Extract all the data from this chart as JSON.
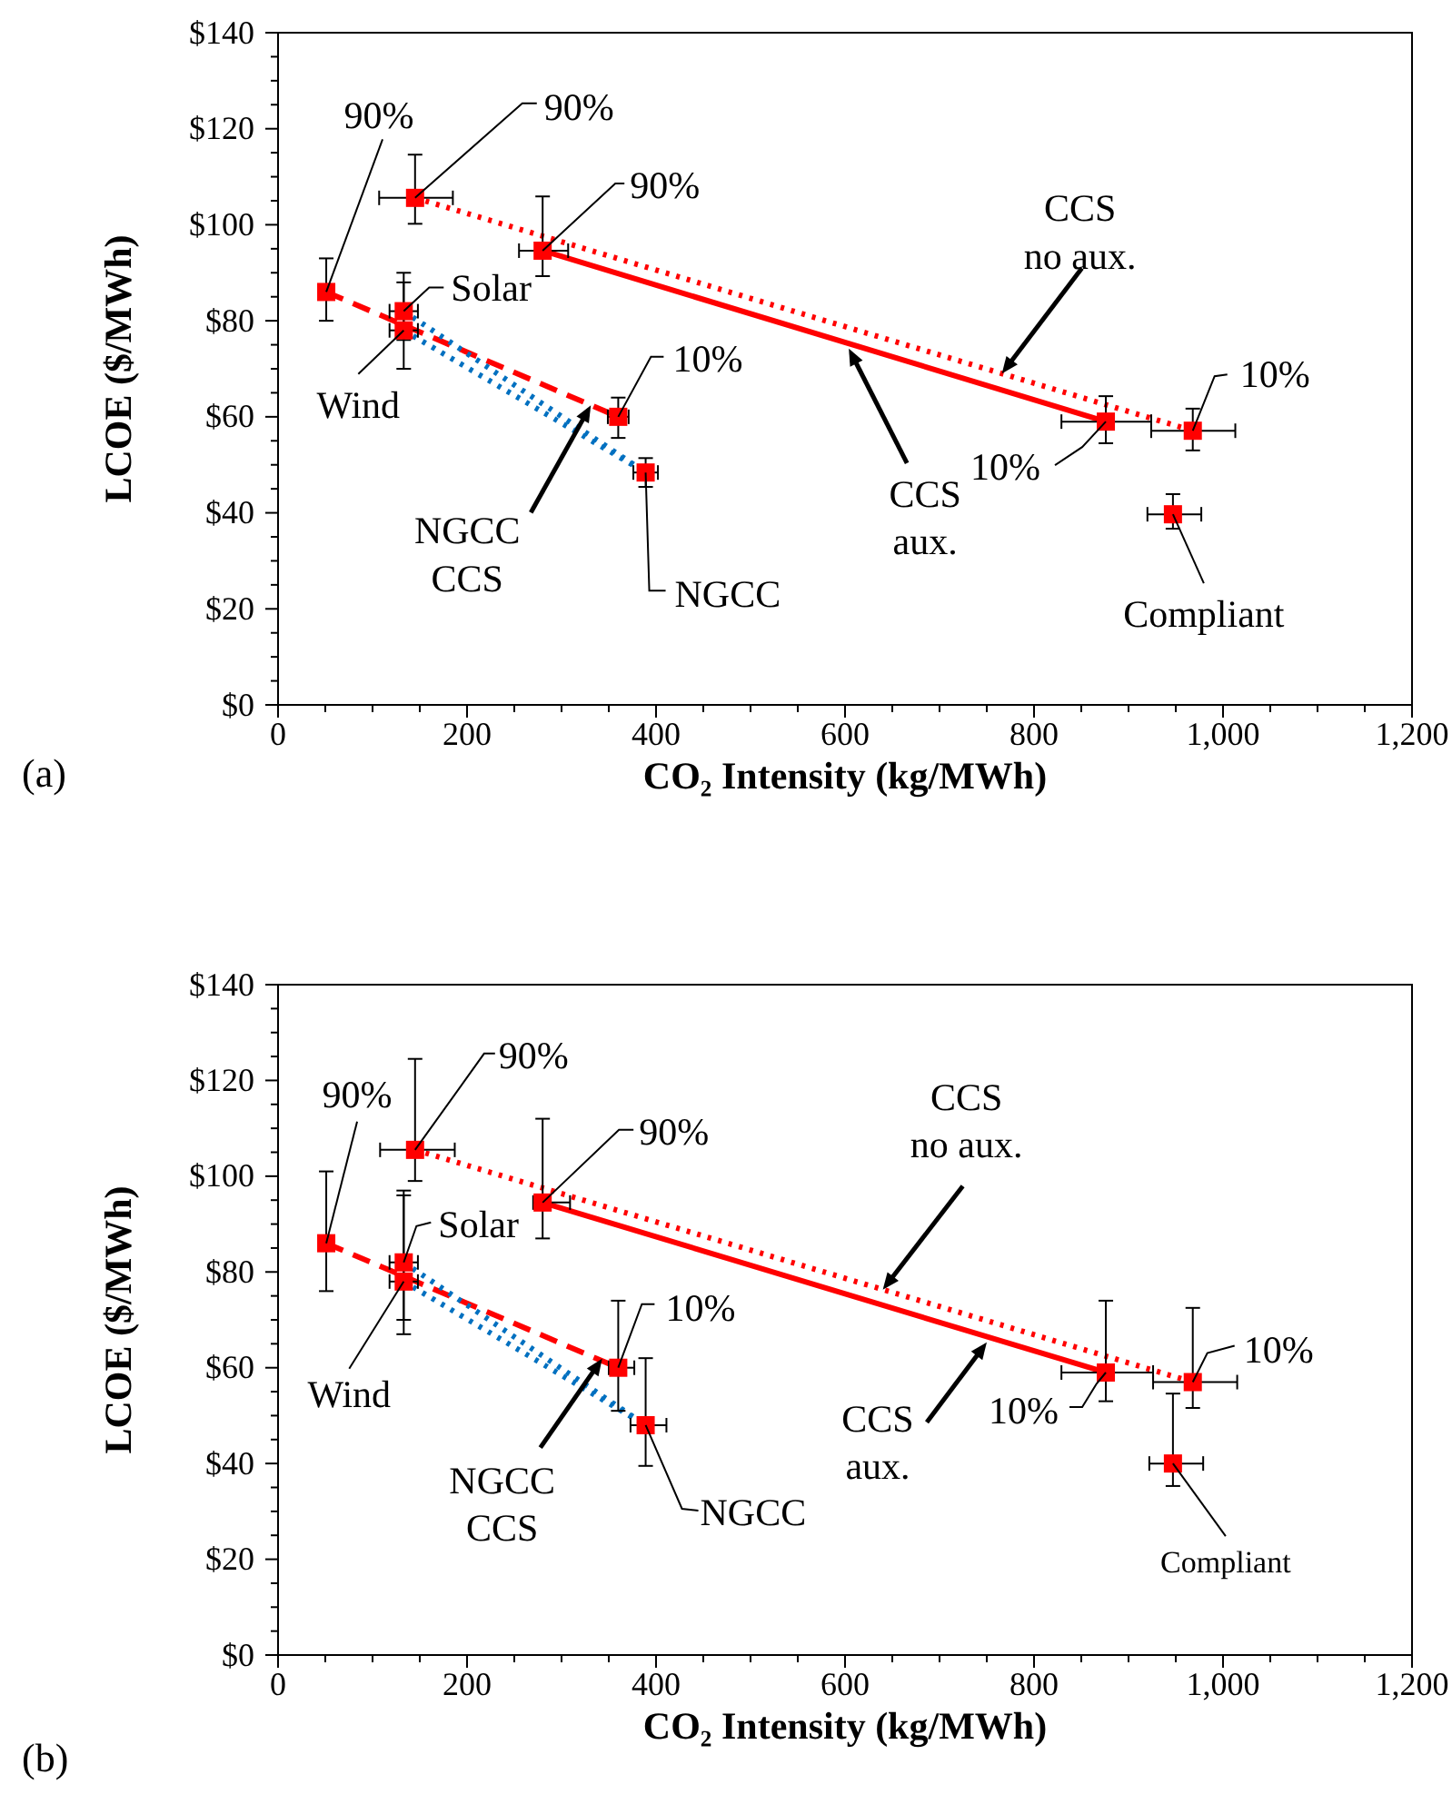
{
  "chart_data": [
    {
      "type": "line",
      "xlabel": "CO₂ Intensity (kg/MWh)",
      "ylabel": "LCOE ($/MWh)",
      "xlim": [
        0,
        1200
      ],
      "ylim": [
        0,
        140
      ],
      "xticks": [
        0,
        {
          "value": 50,
          "label": null
        },
        {
          "value": 100,
          "label": null
        },
        {
          "value": 150,
          "label": null
        },
        200,
        {
          "value": 250,
          "label": null
        },
        {
          "value": 300,
          "label": null
        },
        {
          "value": 350,
          "label": null
        },
        400,
        {
          "value": 450,
          "label": null
        },
        {
          "value": 500,
          "label": null
        },
        {
          "value": 550,
          "label": null
        },
        600,
        {
          "value": 650,
          "label": null
        },
        {
          "value": 700,
          "label": null
        },
        {
          "value": 750,
          "label": null
        },
        800,
        {
          "value": 850,
          "label": null
        },
        {
          "value": 900,
          "label": null
        },
        {
          "value": 950,
          "label": null
        },
        {
          "value": 1000,
          "label": "1,000"
        },
        {
          "value": 1050,
          "label": null
        },
        {
          "value": 1100,
          "label": null
        },
        {
          "value": 1150,
          "label": null
        },
        {
          "value": 1200,
          "label": "1,200"
        }
      ],
      "yticks": [
        {
          "value": 0,
          "label": "$0"
        },
        {
          "value": 5,
          "label": null
        },
        {
          "value": 10,
          "label": null
        },
        {
          "value": 15,
          "label": null
        },
        {
          "value": 20,
          "label": "$20"
        },
        {
          "value": 25,
          "label": null
        },
        {
          "value": 30,
          "label": null
        },
        {
          "value": 35,
          "label": null
        },
        {
          "value": 40,
          "label": "$40"
        },
        {
          "value": 45,
          "label": null
        },
        {
          "value": 50,
          "label": null
        },
        {
          "value": 55,
          "label": null
        },
        {
          "value": 60,
          "label": "$60"
        },
        {
          "value": 65,
          "label": null
        },
        {
          "value": 70,
          "label": null
        },
        {
          "value": 75,
          "label": null
        },
        {
          "value": 80,
          "label": "$80"
        },
        {
          "value": 85,
          "label": null
        },
        {
          "value": 90,
          "label": null
        },
        {
          "value": 95,
          "label": null
        },
        {
          "value": 100,
          "label": "$100"
        },
        {
          "value": 105,
          "label": null
        },
        {
          "value": 110,
          "label": null
        },
        {
          "value": 115,
          "label": null
        },
        {
          "value": 120,
          "label": "$120"
        },
        {
          "value": 125,
          "label": null
        },
        {
          "value": 130,
          "label": null
        },
        {
          "value": 135,
          "label": null
        },
        {
          "value": 140,
          "label": "$140"
        }
      ],
      "series": [
        {
          "type": "line",
          "color": "#ff0000",
          "line_style": "dashed",
          "marker": "square",
          "x": [
            51,
            360
          ],
          "values": [
            86,
            60
          ],
          "errors": [
            [
              80,
              93
            ],
            [
              55.6,
              64
            ]
          ],
          "xerrors": [
            null,
            [
              349,
              371
            ]
          ]
        },
        {
          "type": "line",
          "color": "#0070c0",
          "line_style": "dotted",
          "marker": "none",
          "x": [
            133,
            389
          ],
          "values": [
            82,
            48.4
          ]
        },
        {
          "type": "line",
          "color": "#0070c0",
          "line_style": "dotted",
          "marker": "none",
          "x": [
            133,
            389
          ],
          "values": [
            78,
            48.4
          ]
        },
        {
          "type": "line",
          "color": "#ff0000",
          "line_style": "dotted",
          "marker": "square",
          "x": [
            145,
            968
          ],
          "values": [
            105.6,
            57.1
          ],
          "errors": [
            [
              100.2,
              114.6
            ],
            [
              53,
              61.7
            ]
          ],
          "xerrors": [
            [
              107,
              185
            ],
            [
              924,
              1013
            ]
          ]
        },
        {
          "type": "line",
          "color": "#ff0000",
          "line_style": "solid",
          "marker": "square",
          "x": [
            280,
            876
          ],
          "values": [
            94.6,
            59
          ],
          "errors": [
            [
              89.3,
              105.9
            ],
            [
              54.5,
              64.3
            ]
          ],
          "xerrors": [
            [
              255,
              307
            ],
            [
              829,
              924
            ]
          ]
        },
        {
          "type": "scatter",
          "color": "#ff0000",
          "marker": "square",
          "x": [
            133,
            133,
            389,
            947
          ],
          "values": [
            82,
            78,
            48.4,
            39.7
          ],
          "errors": [
            [
              76,
              90
            ],
            [
              70,
              88
            ],
            [
              45.4,
              51.4
            ],
            [
              36.7,
              43.9
            ]
          ],
          "xerrors": [
            [
              118,
              148
            ],
            [
              118,
              148
            ],
            [
              376,
              402
            ],
            [
              920,
              977
            ]
          ]
        }
      ],
      "annotations": [
        {
          "text": "90%",
          "x": 51,
          "y": 86
        },
        {
          "text": "90%",
          "x": 145,
          "y": 105.6
        },
        {
          "text": "90%",
          "x": 280,
          "y": 94.6
        },
        {
          "text": "Solar",
          "x": 133,
          "y": 82
        },
        {
          "text": "Wind",
          "x": 133,
          "y": 78
        },
        {
          "text": "10%",
          "x": 360,
          "y": 60
        },
        {
          "text": "NGCC\nCCS",
          "x": 331,
          "y": 62.4
        },
        {
          "text": "NGCC",
          "x": 389,
          "y": 48.4
        },
        {
          "text": "CCS\naux.",
          "x": 604,
          "y": 74.2
        },
        {
          "text": "CCS\nno aux.",
          "x": 766,
          "y": 69
        },
        {
          "text": "10%",
          "x": 876,
          "y": 59
        },
        {
          "text": "10%",
          "x": 968,
          "y": 57.1
        },
        {
          "text": "Compliant",
          "x": 947,
          "y": 39.7
        },
        "(a)"
      ]
    },
    {
      "type": "line",
      "xlabel": "CO₂ Intensity (kg/MWh)",
      "ylabel": "LCOE ($/MWh)",
      "xlim": [
        0,
        1200
      ],
      "ylim": [
        0,
        140
      ],
      "xticks": [
        0,
        {
          "value": 50,
          "label": null
        },
        {
          "value": 100,
          "label": null
        },
        {
          "value": 150,
          "label": null
        },
        200,
        {
          "value": 250,
          "label": null
        },
        {
          "value": 300,
          "label": null
        },
        {
          "value": 350,
          "label": null
        },
        400,
        {
          "value": 450,
          "label": null
        },
        {
          "value": 500,
          "label": null
        },
        {
          "value": 550,
          "label": null
        },
        600,
        {
          "value": 650,
          "label": null
        },
        {
          "value": 700,
          "label": null
        },
        {
          "value": 750,
          "label": null
        },
        800,
        {
          "value": 850,
          "label": null
        },
        {
          "value": 900,
          "label": null
        },
        {
          "value": 950,
          "label": null
        },
        {
          "value": 1000,
          "label": "1,000"
        },
        {
          "value": 1050,
          "label": null
        },
        {
          "value": 1100,
          "label": null
        },
        {
          "value": 1150,
          "label": null
        },
        {
          "value": 1200,
          "label": "1,200"
        }
      ],
      "yticks": [
        {
          "value": 0,
          "label": "$0"
        },
        {
          "value": 5,
          "label": null
        },
        {
          "value": 10,
          "label": null
        },
        {
          "value": 15,
          "label": null
        },
        {
          "value": 20,
          "label": "$20"
        },
        {
          "value": 25,
          "label": null
        },
        {
          "value": 30,
          "label": null
        },
        {
          "value": 35,
          "label": null
        },
        {
          "value": 40,
          "label": "$40"
        },
        {
          "value": 45,
          "label": null
        },
        {
          "value": 50,
          "label": null
        },
        {
          "value": 55,
          "label": null
        },
        {
          "value": 60,
          "label": "$60"
        },
        {
          "value": 65,
          "label": null
        },
        {
          "value": 70,
          "label": null
        },
        {
          "value": 75,
          "label": null
        },
        {
          "value": 80,
          "label": "$80"
        },
        {
          "value": 85,
          "label": null
        },
        {
          "value": 90,
          "label": null
        },
        {
          "value": 95,
          "label": null
        },
        {
          "value": 100,
          "label": "$100"
        },
        {
          "value": 105,
          "label": null
        },
        {
          "value": 110,
          "label": null
        },
        {
          "value": 115,
          "label": null
        },
        {
          "value": 120,
          "label": "$120"
        },
        {
          "value": 125,
          "label": null
        },
        {
          "value": 130,
          "label": null
        },
        {
          "value": 135,
          "label": null
        },
        {
          "value": 140,
          "label": "$140"
        }
      ],
      "series": [
        {
          "type": "line",
          "color": "#ff0000",
          "line_style": "dashed",
          "marker": "square",
          "x": [
            51,
            360
          ],
          "values": [
            86,
            60
          ],
          "errors": [
            [
              76,
              101
            ],
            [
              51,
              74
            ]
          ],
          "xerrors": [
            null,
            [
              350,
              377
            ]
          ]
        },
        {
          "type": "line",
          "color": "#0070c0",
          "line_style": "dotted",
          "marker": "none",
          "x": [
            133,
            389
          ],
          "values": [
            82,
            48
          ]
        },
        {
          "type": "line",
          "color": "#0070c0",
          "line_style": "dotted",
          "marker": "none",
          "x": [
            133,
            389
          ],
          "values": [
            78,
            48
          ]
        },
        {
          "type": "line",
          "color": "#ff0000",
          "line_style": "dotted",
          "marker": "square",
          "x": [
            145,
            968
          ],
          "values": [
            105.5,
            57
          ],
          "errors": [
            [
              99,
              124.5
            ],
            [
              51.6,
              72.5
            ]
          ],
          "xerrors": [
            [
              108,
              187
            ],
            [
              926,
              1015
            ]
          ]
        },
        {
          "type": "line",
          "color": "#ff0000",
          "line_style": "solid",
          "marker": "square",
          "x": [
            280,
            876
          ],
          "values": [
            94.5,
            59
          ],
          "errors": [
            [
              87,
              112
            ],
            [
              53,
              74
            ]
          ],
          "xerrors": [
            [
              270,
              309
            ],
            [
              829,
              926
            ]
          ]
        },
        {
          "type": "scatter",
          "color": "#ff0000",
          "marker": "square",
          "x": [
            133,
            133,
            389,
            947
          ],
          "values": [
            82,
            78,
            48,
            40
          ],
          "errors": [
            [
              70,
              97
            ],
            [
              67,
              96
            ],
            [
              39.5,
              62
            ],
            [
              35.3,
              54.6
            ]
          ],
          "xerrors": [
            [
              118,
              148
            ],
            [
              118,
              148
            ],
            [
              373,
              411
            ],
            [
              922,
              979
            ]
          ]
        }
      ],
      "annotations": [
        {
          "text": "90%",
          "x": 51,
          "y": 86
        },
        {
          "text": "90%",
          "x": 145,
          "y": 105.5
        },
        {
          "text": "90%",
          "x": 280,
          "y": 94.5
        },
        {
          "text": "Solar",
          "x": 133,
          "y": 82
        },
        {
          "text": "Wind",
          "x": 133,
          "y": 78
        },
        {
          "text": "10%",
          "x": 360,
          "y": 60
        },
        {
          "text": "NGCC\nCCS",
          "x": 343,
          "y": 61.9
        },
        {
          "text": "NGCC",
          "x": 389,
          "y": 48
        },
        {
          "text": "CCS\naux.",
          "x": 750,
          "y": 65.3
        },
        {
          "text": "CCS\nno aux.",
          "x": 640,
          "y": 76.3
        },
        {
          "text": "10%",
          "x": 876,
          "y": 59
        },
        {
          "text": "10%",
          "x": 968,
          "y": 57
        },
        {
          "text": "Compliant",
          "x": 947,
          "y": 40
        },
        "(b)"
      ]
    }
  ]
}
